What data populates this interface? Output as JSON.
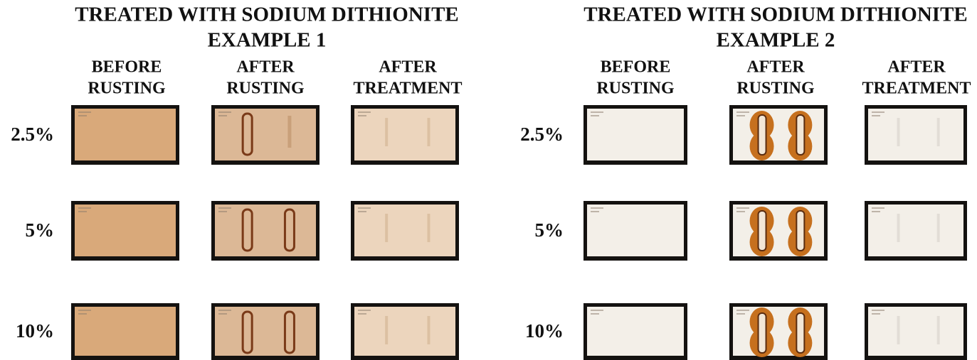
{
  "panels": [
    {
      "title": "TREATED WITH SODIUM DITHIONITE",
      "subtitle": "EXAMPLE 1",
      "columns": [
        [
          "BEFORE",
          "RUSTING"
        ],
        [
          "AFTER",
          "RUSTING"
        ],
        [
          "AFTER",
          "TREATMENT"
        ]
      ],
      "rows": [
        "2.5%",
        "5%",
        "10%"
      ]
    },
    {
      "title": "TREATED WITH SODIUM DITHIONITE",
      "subtitle": "EXAMPLE 2",
      "columns": [
        [
          "BEFORE",
          "RUSTING"
        ],
        [
          "AFTER",
          "RUSTING"
        ],
        [
          "AFTER",
          "TREATMENT"
        ]
      ],
      "rows": [
        "2.5%",
        "5%",
        "10%"
      ]
    }
  ]
}
